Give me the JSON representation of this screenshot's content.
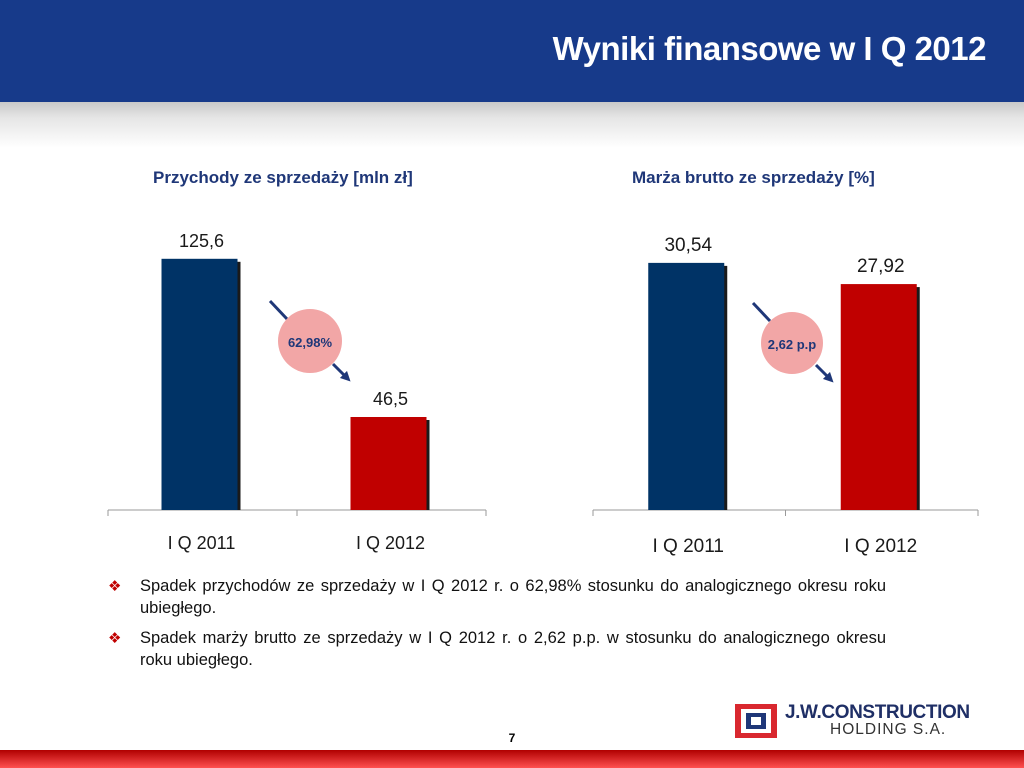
{
  "header": {
    "title": "Wyniki finansowe w I Q 2012"
  },
  "charts": {
    "left_title": "Przychody ze sprzedaży [mln zł]",
    "right_title": "Marża brutto ze sprzedaży [%]",
    "left_change_label": "62,98%",
    "right_change_label": "2,62 p.p"
  },
  "chart_data": [
    {
      "type": "bar",
      "title": "Przychody ze sprzedaży [mln zł]",
      "categories": [
        "I Q 2011",
        "I Q 2012"
      ],
      "values": [
        125.6,
        46.5
      ],
      "value_labels": [
        "125,6",
        "46,5"
      ],
      "bar_colors": [
        "#003366",
        "#c00000"
      ],
      "ylim": [
        0,
        135
      ]
    },
    {
      "type": "bar",
      "title": "Marża brutto ze sprzedaży [%]",
      "categories": [
        "I Q 2011",
        "I Q 2012"
      ],
      "values": [
        30.54,
        27.92
      ],
      "value_labels": [
        "30,54",
        "27,92"
      ],
      "bar_colors": [
        "#003366",
        "#c00000"
      ],
      "ylim": [
        0,
        32.75
      ]
    }
  ],
  "bullets": [
    "Spadek przychodów ze sprzedaży w I Q 2012 r. o 62,98% stosunku do analogicznego okresu roku ubiegłego.",
    "Spadek marży brutto ze sprzedaży w I Q 2012 r. o 2,62 p.p. w stosunku do analogicznego okresu roku ubiegłego."
  ],
  "logo": {
    "line1": "J.W.CONSTRUCTION",
    "line2": "HOLDING S.A."
  },
  "page_number": "7",
  "colors": {
    "header": "#173a8a",
    "title_text": "#1f3778",
    "bar_2011": "#003366",
    "bar_2012": "#c00000",
    "change_circle": "#f2a6a6",
    "accent": "#c00000"
  }
}
